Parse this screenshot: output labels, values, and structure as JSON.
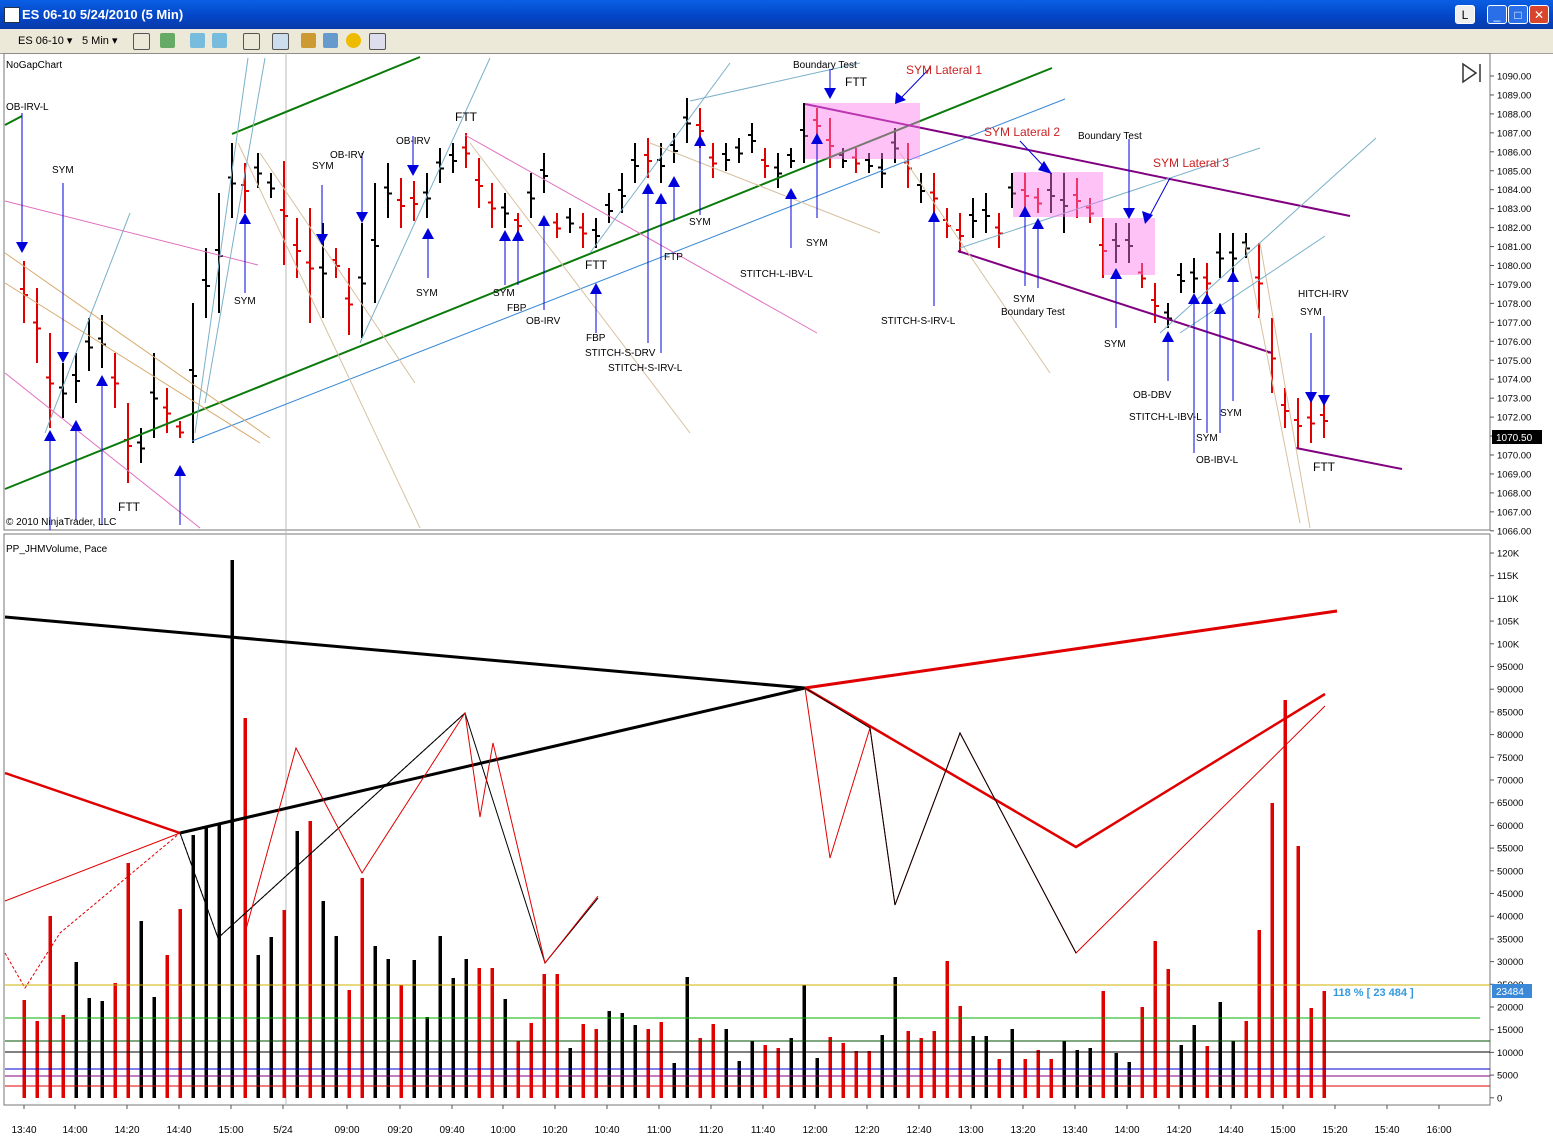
{
  "window": {
    "title": "ES 06-10  5/24/2010 (5 Min)",
    "btn_l": "L"
  },
  "toolbar": {
    "instrument": "ES 06-10",
    "interval": "5 Min"
  },
  "price_panel": {
    "name": "NoGapChart",
    "copyright": "© 2010 NinjaTrader, LLC",
    "last_price": "1070.50",
    "y_ticks": [
      "1090.00",
      "1089.00",
      "1088.00",
      "1087.00",
      "1086.00",
      "1085.00",
      "1084.00",
      "1083.00",
      "1082.00",
      "1081.00",
      "1080.00",
      "1079.00",
      "1078.00",
      "1077.00",
      "1076.00",
      "1075.00",
      "1074.00",
      "1073.00",
      "1072.00",
      "1071.00",
      "1070.00",
      "1069.00",
      "1068.00",
      "1067.00",
      "1066.00"
    ],
    "annotations": {
      "obirvl": "OB-IRV-L",
      "sym1": "SYM",
      "sym2": "SYM",
      "obirv1": "OB-IRV",
      "sym3": "SYM",
      "obirv2": "OB-IRV",
      "sym4": "SYM",
      "ftt1": "FTT",
      "sym5": "SYM",
      "fbp1": "FBP",
      "obirv3": "OB-IRV",
      "ftt2": "FTT",
      "fbp2": "FBP",
      "stitchsdrv": "STITCH-S-DRV",
      "stitchsirvl1": "STITCH-S-IRV-L",
      "ftp": "FTP",
      "sym6": "SYM",
      "boundarytest1": "Boundary Test",
      "ftt3": "FTT",
      "symlat1": "SYM Lateral 1",
      "sym7": "SYM",
      "stitchlibvl": "STITCH-L-IBV-L",
      "stitchsirvl2": "STITCH-S-IRV-L",
      "symlat2": "SYM Lateral 2",
      "boundarytest2": "Boundary Test",
      "symlat3": "SYM Lateral 3",
      "sym8": "SYM",
      "boundarytest3": "Boundary Test",
      "sym9": "SYM",
      "obdbv": "OB-DBV",
      "stitchlibvl2": "STITCH-L-IBV-L",
      "sym10": "SYM",
      "sym11": "SYM",
      "obibvl": "OB-IBV-L",
      "hitchirv": "HITCH-IRV",
      "sym12": "SYM",
      "ftt4": "FTT",
      "ftt0": "FTT"
    }
  },
  "volume_panel": {
    "name": "PP_JHMVolume, Pace",
    "pace_label": "118 % [ 23 484 ]",
    "last_value": "23484",
    "y_ticks": [
      "120K",
      "115K",
      "110K",
      "105K",
      "100K",
      "95000",
      "90000",
      "85000",
      "80000",
      "75000",
      "70000",
      "65000",
      "60000",
      "55000",
      "50000",
      "45000",
      "40000",
      "35000",
      "30000",
      "25000",
      "20000",
      "15000",
      "10000",
      "5000",
      "0"
    ]
  },
  "x_ticks": [
    "13:40",
    "14:00",
    "14:20",
    "14:40",
    "15:00",
    "5/24",
    "09:00",
    "09:20",
    "09:40",
    "10:00",
    "10:20",
    "10:40",
    "11:00",
    "11:20",
    "11:40",
    "12:00",
    "12:20",
    "12:40",
    "13:00",
    "13:20",
    "13:40",
    "14:00",
    "14:20",
    "14:40",
    "15:00",
    "15:20",
    "15:40",
    "16:00"
  ],
  "colors": {
    "up": "#000000",
    "down": "#e00000",
    "arrow": "#0000dd",
    "trend_green": "#0a7a0a",
    "channel_purple": "#800080",
    "highlight": "#ff88ee",
    "accent_text": "#cc2222"
  }
}
